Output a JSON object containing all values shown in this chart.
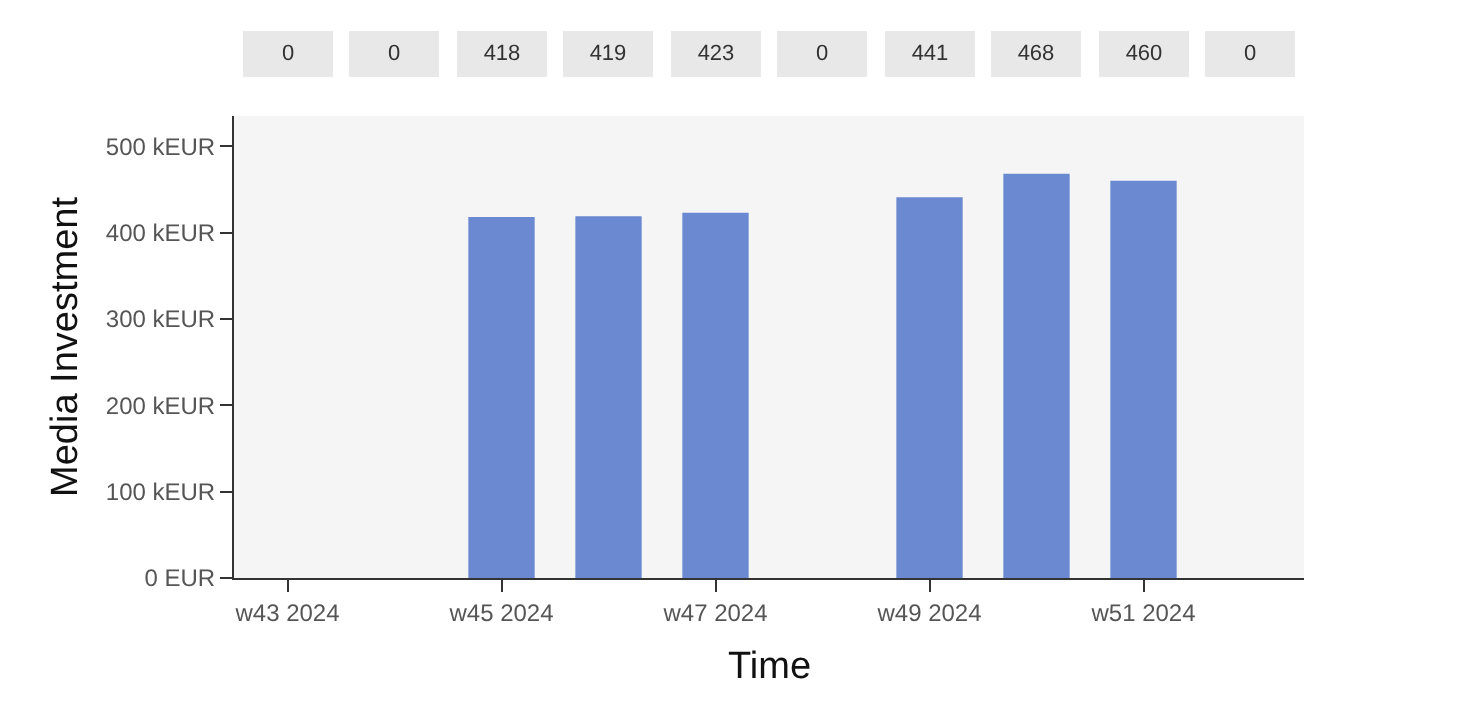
{
  "chart_data": {
    "type": "bar",
    "xlabel": "Time",
    "ylabel": "Media Investment",
    "categories": [
      "w43 2024",
      null,
      "w45 2024",
      null,
      "w47 2024",
      null,
      "w49 2024",
      null,
      "w51 2024",
      null
    ],
    "values": [
      0,
      0,
      418,
      419,
      423,
      0,
      441,
      468,
      460,
      0
    ],
    "color": "#6a89d0",
    "ylim": [
      0,
      535
    ],
    "yticks": [
      {
        "value": 0,
        "label": "0 EUR"
      },
      {
        "value": 100,
        "label": "100 kEUR"
      },
      {
        "value": 200,
        "label": "200 kEUR"
      },
      {
        "value": 300,
        "label": "300 kEUR"
      },
      {
        "value": 400,
        "label": "400 kEUR"
      },
      {
        "value": 500,
        "label": "500 kEUR"
      }
    ],
    "data_labels": true,
    "grid": false,
    "legend": false
  }
}
